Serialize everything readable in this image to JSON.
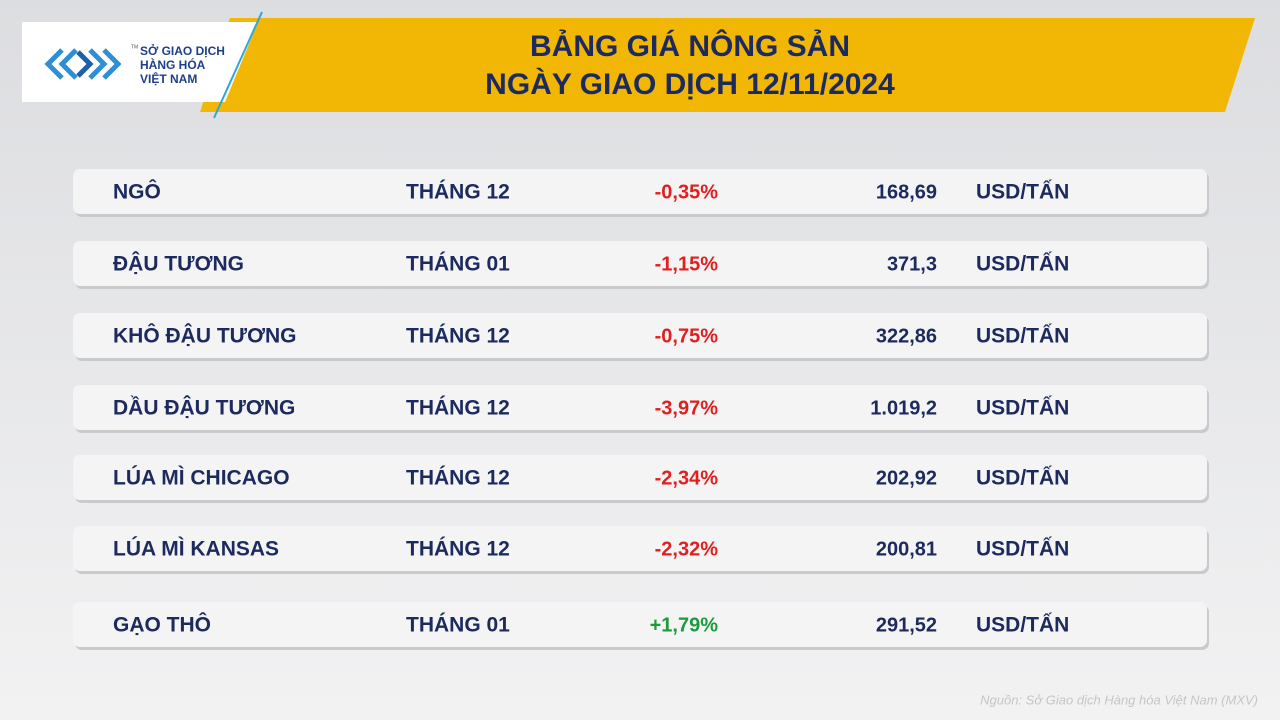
{
  "header": {
    "logo": {
      "lines": [
        "SỞ GIAO DỊCH",
        "HÀNG HÓA",
        "VIỆT NAM"
      ],
      "trademark": "TM"
    },
    "title": [
      "BẢNG GIÁ NÔNG SẢN",
      "NGÀY GIAO DỊCH 12/11/2024"
    ]
  },
  "table": {
    "rows": [
      {
        "commodity": "NGÔ",
        "month": "THÁNG 12",
        "change": "-0,35%",
        "price": "168,69",
        "unit": "USD/TẤN",
        "change_color": "#e0201f"
      },
      {
        "commodity": "ĐẬU TƯƠNG",
        "month": "THÁNG 01",
        "change": "-1,15%",
        "price": "371,3",
        "unit": "USD/TẤN",
        "change_color": "#e0201f"
      },
      {
        "commodity": "KHÔ ĐẬU TƯƠNG",
        "month": "THÁNG 12",
        "change": "-0,75%",
        "price": "322,86",
        "unit": "USD/TẤN",
        "change_color": "#e0201f"
      },
      {
        "commodity": "DẦU ĐẬU TƯƠNG",
        "month": "THÁNG 12",
        "change": "-3,97%",
        "price": "1.019,2",
        "unit": "USD/TẤN",
        "change_color": "#e0201f"
      },
      {
        "commodity": "LÚA MÌ CHICAGO",
        "month": "THÁNG 12",
        "change": "-2,34%",
        "price": "202,92",
        "unit": "USD/TẤN",
        "change_color": "#e0201f"
      },
      {
        "commodity": "LÚA MÌ KANSAS",
        "month": "THÁNG 12",
        "change": "-2,32%",
        "price": "200,81",
        "unit": "USD/TẤN",
        "change_color": "#e0201f"
      },
      {
        "commodity": "GẠO THÔ",
        "month": "THÁNG 01",
        "change": "+1,79%",
        "price": "291,52",
        "unit": "USD/TẤN",
        "change_color": "#1d9a3c"
      }
    ]
  },
  "source": "Nguồn: Sở Giao dịch Hàng hóa Việt Nam (MXV)"
}
